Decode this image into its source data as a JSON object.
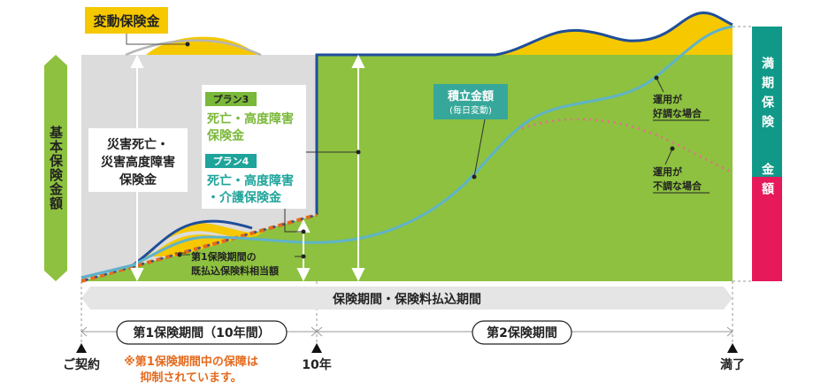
{
  "labels": {
    "variable_insurance": "変動保険金",
    "basic_insurance_amount": "基本保険金額",
    "disaster_box": [
      "災害死亡・",
      "災害高度障害",
      "保険金"
    ],
    "plan3_tag": "プラン3",
    "plan3_text": [
      "死亡・高度障害",
      "保険金"
    ],
    "plan4_tag": "プラン4",
    "plan4_text": [
      "死亡・高度障害",
      "・介護保険金"
    ],
    "accumulated_title": "積立金額",
    "accumulated_sub": "(毎日変動)",
    "good_performance": [
      "運用が",
      "好調な場合"
    ],
    "poor_performance": [
      "運用が",
      "不調な場合"
    ],
    "first_period_paid": [
      "第1保険期間の",
      "既払込保険料相当額"
    ],
    "maturity_amount_top": "満期保険",
    "maturity_amount_bottom": "金額",
    "bar_insurance_period": "保険期間・保険料払込期間",
    "first_period": "第1保険期間（10年間）",
    "second_period": "第2保険期間",
    "contract": "ご契約",
    "ten_years": "10年",
    "maturity": "満了",
    "note": [
      "※第1保険期間中の保障は",
      "抑制されています。"
    ]
  },
  "colors": {
    "green": "#8dc13f",
    "gray": "#dcdcdc",
    "yellow": "#f5c800",
    "navy": "#1f4e9a",
    "teal_line": "#5fb3c9",
    "teal_box": "#37a79b",
    "maturity_teal": "#109988",
    "maturity_pink": "#e6195a",
    "pink_dots": "#e86b8f",
    "orange": "#e36a1d",
    "plan_green": "#7ab83a",
    "plan4_teal": "#1ea49b",
    "bar_gray": "#e5e5e5"
  }
}
